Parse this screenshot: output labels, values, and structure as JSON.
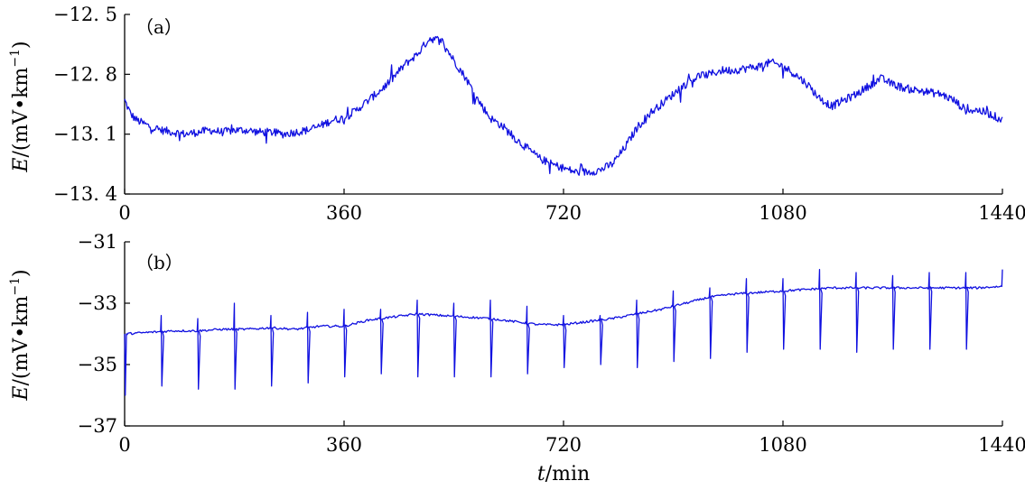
{
  "chart_data": [
    {
      "type": "line",
      "panel_label": "（a）",
      "ylabel_italic": "E",
      "ylabel_rest": "/(mV•km",
      "ylabel_sup": "−1",
      "ylabel_close": ")",
      "xlim": [
        0,
        1440
      ],
      "ylim": [
        -13.4,
        -12.5
      ],
      "xticks": [
        0,
        360,
        720,
        1080,
        1440
      ],
      "xtick_labels": [
        "0",
        "360",
        "720",
        "1080",
        "1440"
      ],
      "yticks": [
        -13.4,
        -13.1,
        -12.8,
        -12.5
      ],
      "ytick_labels": [
        "−13. 4",
        "−13. 1",
        "−12. 8",
        "−12. 5"
      ],
      "series": [
        {
          "color": "#1010e0",
          "x": [
            0,
            10,
            20,
            40,
            60,
            80,
            100,
            120,
            140,
            160,
            180,
            200,
            220,
            240,
            260,
            280,
            300,
            320,
            340,
            360,
            380,
            400,
            420,
            440,
            460,
            480,
            500,
            520,
            540,
            560,
            580,
            600,
            620,
            640,
            660,
            680,
            700,
            720,
            740,
            760,
            780,
            800,
            820,
            840,
            860,
            880,
            900,
            920,
            940,
            960,
            980,
            1000,
            1020,
            1040,
            1060,
            1080,
            1100,
            1120,
            1140,
            1160,
            1180,
            1200,
            1220,
            1240,
            1260,
            1280,
            1300,
            1320,
            1340,
            1360,
            1380,
            1400,
            1420,
            1440
          ],
          "y": [
            -12.93,
            -13.0,
            -13.03,
            -13.06,
            -13.08,
            -13.09,
            -13.1,
            -13.09,
            -13.08,
            -13.09,
            -13.08,
            -13.08,
            -13.09,
            -13.09,
            -13.1,
            -13.09,
            -13.08,
            -13.06,
            -13.03,
            -13.02,
            -12.98,
            -12.93,
            -12.88,
            -12.82,
            -12.75,
            -12.7,
            -12.62,
            -12.63,
            -12.73,
            -12.82,
            -12.93,
            -13.02,
            -13.06,
            -13.12,
            -13.17,
            -13.22,
            -13.25,
            -13.27,
            -13.29,
            -13.29,
            -13.28,
            -13.25,
            -13.17,
            -13.07,
            -13.0,
            -12.95,
            -12.9,
            -12.85,
            -12.81,
            -12.8,
            -12.78,
            -12.78,
            -12.77,
            -12.76,
            -12.74,
            -12.76,
            -12.8,
            -12.85,
            -12.92,
            -12.96,
            -12.93,
            -12.9,
            -12.86,
            -12.82,
            -12.85,
            -12.87,
            -12.88,
            -12.89,
            -12.9,
            -12.93,
            -12.98,
            -12.98,
            -13.0,
            -13.03
          ]
        }
      ]
    },
    {
      "type": "line",
      "panel_label": "（b）",
      "ylabel_italic": "E",
      "ylabel_rest": "/(mV•km",
      "ylabel_sup": "−1",
      "ylabel_close": ")",
      "xlabel_italic": "t",
      "xlabel_rest": "/min",
      "xlim": [
        0,
        1440
      ],
      "ylim": [
        -37,
        -31
      ],
      "xticks": [
        0,
        360,
        720,
        1080,
        1440
      ],
      "xtick_labels": [
        "0",
        "360",
        "720",
        "1080",
        "1440"
      ],
      "yticks": [
        -37,
        -35,
        -33,
        -31
      ],
      "ytick_labels": [
        "−37",
        "−35",
        "−33",
        "−31"
      ],
      "series": [
        {
          "color": "#1010e0",
          "x": [
            0,
            40,
            80,
            120,
            160,
            200,
            240,
            280,
            320,
            360,
            400,
            440,
            480,
            520,
            560,
            600,
            640,
            680,
            720,
            760,
            800,
            840,
            880,
            920,
            960,
            1000,
            1040,
            1080,
            1120,
            1160,
            1200,
            1240,
            1280,
            1320,
            1360,
            1400,
            1440
          ],
          "y": [
            -34.0,
            -33.95,
            -33.9,
            -33.9,
            -33.85,
            -33.85,
            -33.8,
            -33.85,
            -33.75,
            -33.75,
            -33.55,
            -33.45,
            -33.35,
            -33.4,
            -33.45,
            -33.5,
            -33.6,
            -33.7,
            -33.7,
            -33.6,
            -33.5,
            -33.35,
            -33.2,
            -33.0,
            -32.8,
            -32.7,
            -32.65,
            -32.6,
            -32.55,
            -32.5,
            -32.5,
            -32.5,
            -32.5,
            -32.5,
            -32.5,
            -32.5,
            -32.45
          ],
          "spikes": {
            "times": [
              60,
              120,
              180,
              240,
              300,
              360,
              420,
              480,
              540,
              600,
              660,
              720,
              780,
              840,
              900,
              960,
              1020,
              1080,
              1140,
              1200,
              1260,
              1320,
              1380,
              1440
            ],
            "up": [
              -33.4,
              -33.5,
              -33.0,
              -33.4,
              -33.3,
              -33.2,
              -33.2,
              -32.9,
              -33.0,
              -32.9,
              -33.1,
              -33.4,
              -33.4,
              -32.9,
              -32.6,
              -32.5,
              -32.2,
              -32.2,
              -31.9,
              -32.0,
              -32.1,
              -32.0,
              -32.0,
              -31.9
            ],
            "down": [
              -35.7,
              -35.8,
              -35.8,
              -35.7,
              -35.6,
              -35.4,
              -35.3,
              -35.4,
              -35.4,
              -35.4,
              -35.3,
              -35.1,
              -35.0,
              -35.1,
              -34.9,
              -34.8,
              -34.6,
              -34.5,
              -34.5,
              -34.6,
              -34.5,
              -34.5,
              -34.5,
              null
            ]
          },
          "start_dip": -36.0
        }
      ]
    }
  ]
}
